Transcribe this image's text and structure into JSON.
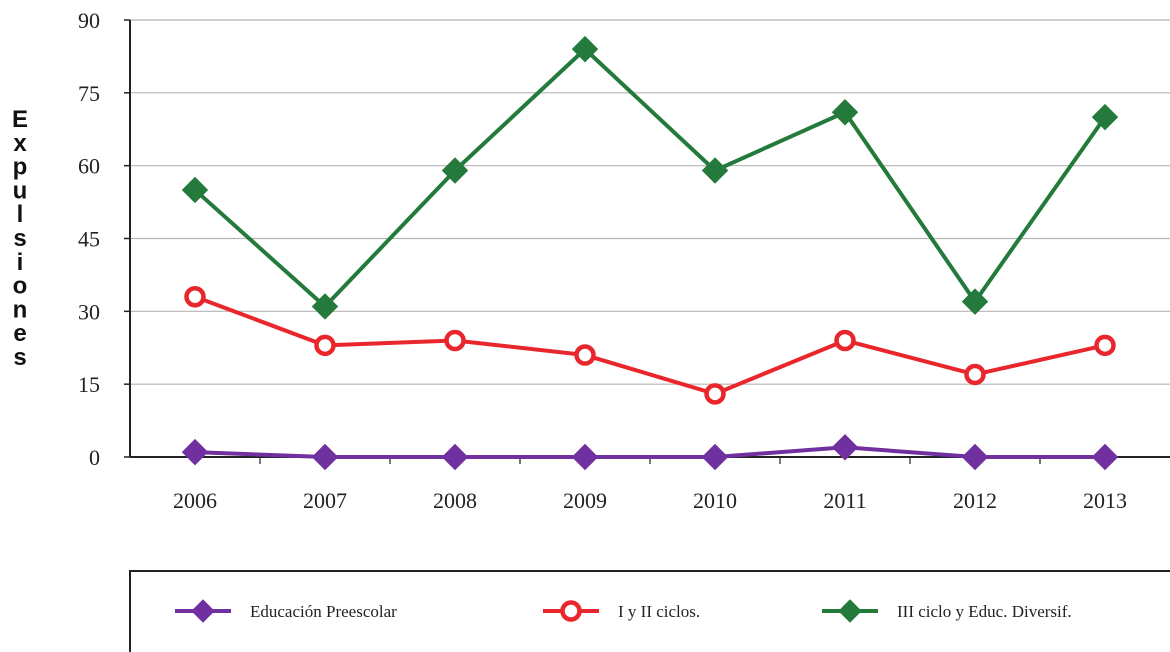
{
  "chart_data": {
    "type": "line",
    "title": "",
    "xlabel": "",
    "ylabel": "Expulsiones",
    "ylim": [
      0,
      90
    ],
    "yticks": [
      "0",
      "15",
      "30",
      "45",
      "60",
      "75",
      "90"
    ],
    "categories": [
      "2006",
      "2007",
      "2008",
      "2009",
      "2010",
      "2011",
      "2012",
      "2013"
    ],
    "grid": true,
    "legend_position": "bottom",
    "series": [
      {
        "name": "Educación Preescolar",
        "values": [
          1,
          0,
          0,
          0,
          0,
          2,
          0,
          0
        ],
        "color": "#7030a0",
        "marker": "diamond"
      },
      {
        "name": "I y II ciclos.",
        "values": [
          33,
          23,
          24,
          21,
          13,
          24,
          17,
          23
        ],
        "color": "#e8262b",
        "marker": "ring"
      },
      {
        "name": "III ciclo y Educ. Diversif.",
        "values": [
          55,
          31,
          59,
          84,
          59,
          71,
          32,
          70
        ],
        "color": "#237a3b",
        "marker": "diamond"
      }
    ]
  }
}
